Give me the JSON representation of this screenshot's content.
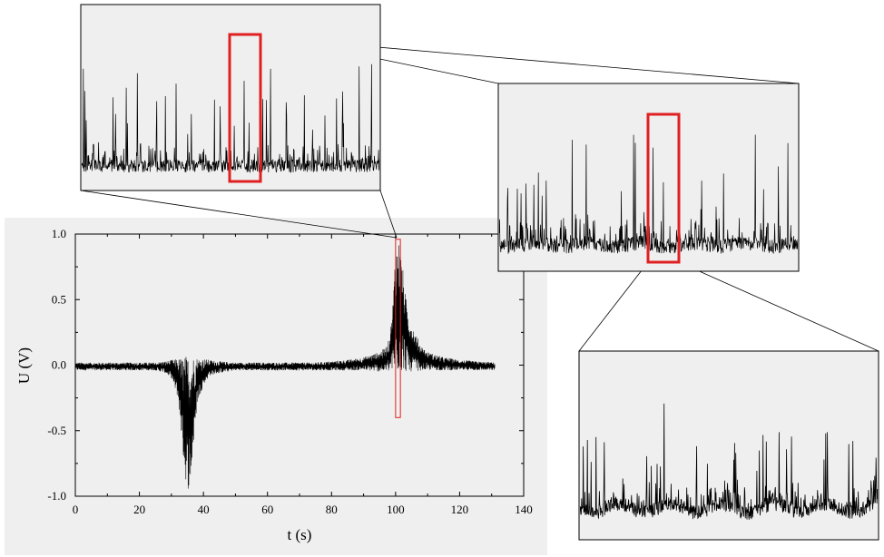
{
  "chart_data": {
    "type": "line",
    "title": "",
    "xlabel": "t (s)",
    "ylabel": "U (V)",
    "xlim": [
      0,
      140
    ],
    "ylim": [
      -1.0,
      1.0
    ],
    "x_ticks": [
      "0",
      "20",
      "40",
      "60",
      "80",
      "100",
      "120",
      "140"
    ],
    "y_ticks": [
      "1.0",
      "0.5",
      "0.0",
      "-0.5",
      "-1.0"
    ],
    "grid": false,
    "legend": "none",
    "series": [
      {
        "x": [
          0,
          5,
          10,
          15,
          20,
          25,
          28,
          30,
          32,
          33,
          34,
          35,
          36,
          37,
          38,
          40,
          42,
          45,
          50,
          55,
          60,
          65,
          70,
          75,
          80,
          85,
          90,
          95,
          97,
          98,
          99,
          100,
          101,
          102,
          103,
          104,
          106,
          108,
          110,
          115,
          120,
          125,
          131
        ],
        "upper_envelope": [
          0.02,
          0.02,
          0.02,
          0.02,
          0.02,
          0.02,
          0.03,
          0.04,
          0.05,
          0.06,
          0.07,
          0.08,
          0.08,
          0.07,
          0.06,
          0.05,
          0.04,
          0.03,
          0.02,
          0.02,
          0.02,
          0.02,
          0.02,
          0.02,
          0.03,
          0.04,
          0.06,
          0.1,
          0.14,
          0.2,
          0.4,
          0.92,
          0.96,
          0.8,
          0.55,
          0.4,
          0.25,
          0.15,
          0.1,
          0.06,
          0.04,
          0.03,
          0.02
        ],
        "lower_envelope": [
          -0.04,
          -0.04,
          -0.04,
          -0.04,
          -0.04,
          -0.04,
          -0.06,
          -0.1,
          -0.25,
          -0.5,
          -0.8,
          -0.96,
          -0.9,
          -0.6,
          -0.3,
          -0.15,
          -0.08,
          -0.06,
          -0.04,
          -0.04,
          -0.04,
          -0.04,
          -0.04,
          -0.04,
          -0.04,
          -0.04,
          -0.04,
          -0.05,
          -0.05,
          -0.05,
          -0.05,
          -0.08,
          -0.06,
          -0.05,
          -0.05,
          -0.05,
          -0.05,
          -0.04,
          -0.04,
          -0.04,
          -0.04,
          -0.04,
          -0.04
        ]
      }
    ],
    "highlight_region": {
      "x_range": [
        100,
        101.5
      ],
      "y_range": [
        -0.4,
        0.96
      ],
      "color": "#e02020"
    },
    "zoom_insets": [
      {
        "level": 1,
        "content": "zoomed noisy signal with sparse tall spikes",
        "highlight_color": "#e02020"
      },
      {
        "level": 2,
        "content": "further zoomed noisy signal with sparse tall spikes",
        "highlight_color": "#e02020"
      },
      {
        "level": 3,
        "content": "finest zoom of noisy signal",
        "highlight_color": null
      }
    ],
    "colors": {
      "panel_bg": "#efefef",
      "trace": "#000000",
      "highlight": "#e02020"
    }
  }
}
